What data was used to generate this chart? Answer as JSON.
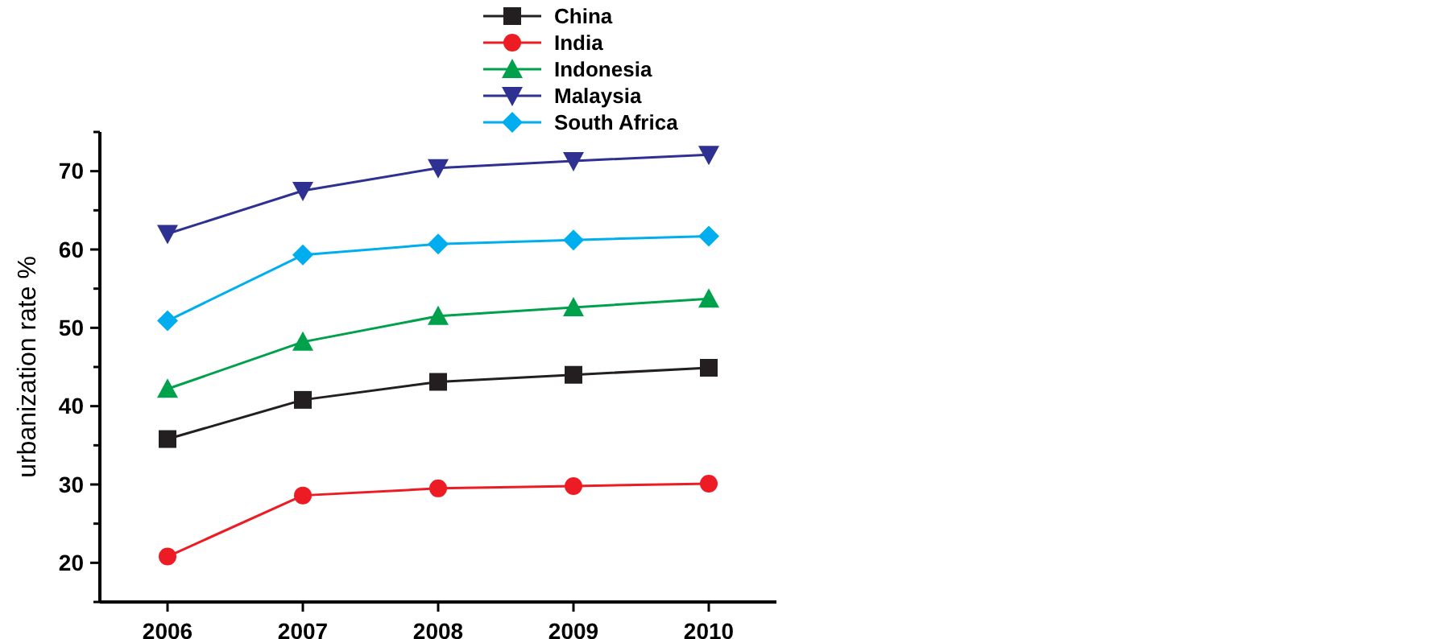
{
  "chart_data": {
    "type": "line",
    "ylabel": "urbanization rate %",
    "x": [
      2006,
      2007,
      2008,
      2009,
      2010
    ],
    "xlim": [
      2005.5,
      2010.5
    ],
    "xticks": [
      2006,
      2007,
      2008,
      2009,
      2010
    ],
    "ylim": [
      15,
      75
    ],
    "yticks": [
      {
        "value": 15,
        "label": null
      },
      20,
      {
        "value": 25,
        "label": null
      },
      30,
      {
        "value": 35,
        "label": null
      },
      40,
      {
        "value": 45,
        "label": null
      },
      50,
      {
        "value": 55,
        "label": null
      },
      60,
      {
        "value": 65,
        "label": null
      },
      70,
      {
        "value": 75,
        "label": null
      }
    ],
    "legend": "top",
    "grid": false,
    "series": [
      {
        "name": "China",
        "color": "#231f20",
        "marker": "square",
        "values": [
          35.8,
          40.8,
          43.1,
          44.0,
          44.9
        ]
      },
      {
        "name": "India",
        "color": "#ed1c24",
        "marker": "circle",
        "values": [
          20.8,
          28.6,
          29.5,
          29.8,
          30.1
        ]
      },
      {
        "name": "Indonesia",
        "color": "#00a14b",
        "marker": "triangle",
        "values": [
          42.2,
          48.2,
          51.5,
          52.6,
          53.7
        ]
      },
      {
        "name": "Malaysia",
        "color": "#2e3192",
        "marker": "triangle-down",
        "values": [
          62.0,
          67.5,
          70.4,
          71.3,
          72.1
        ]
      },
      {
        "name": "South Africa",
        "color": "#00aeef",
        "marker": "diamond",
        "values": [
          50.9,
          59.3,
          60.7,
          61.2,
          61.7
        ]
      }
    ]
  }
}
